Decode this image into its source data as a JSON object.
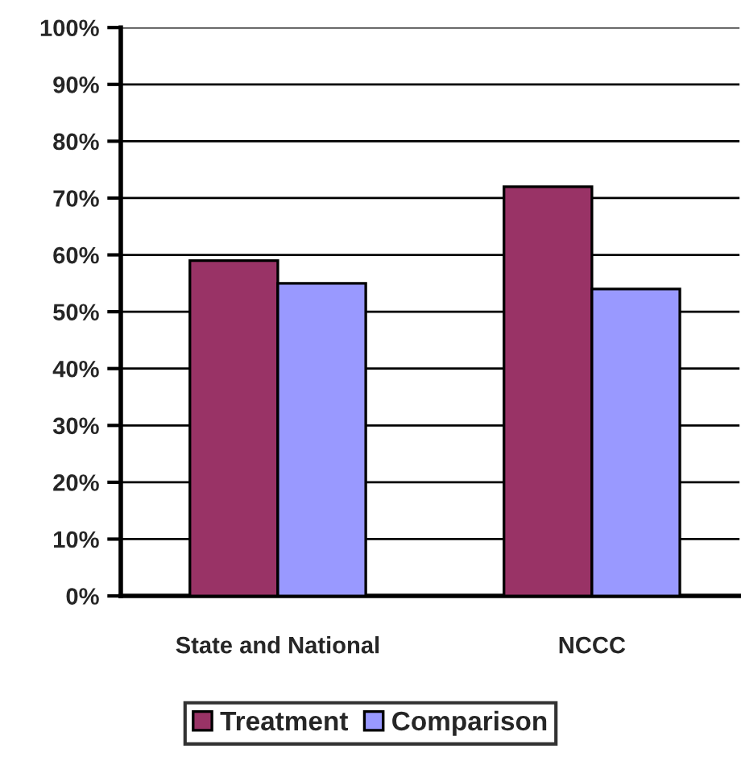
{
  "chart_data": {
    "type": "bar",
    "categories": [
      "State and National",
      "NCCC"
    ],
    "series": [
      {
        "name": "Treatment",
        "color": "#993366",
        "values": [
          59,
          72
        ]
      },
      {
        "name": "Comparison",
        "color": "#9999ff",
        "values": [
          55,
          54
        ]
      }
    ],
    "ylim": [
      0,
      100
    ],
    "yticks": [
      {
        "value": 0,
        "label": "0%"
      },
      {
        "value": 10,
        "label": "10%"
      },
      {
        "value": 20,
        "label": "20%"
      },
      {
        "value": 30,
        "label": "30%"
      },
      {
        "value": 40,
        "label": "40%"
      },
      {
        "value": 50,
        "label": "50%"
      },
      {
        "value": 60,
        "label": "60%"
      },
      {
        "value": 70,
        "label": "70%"
      },
      {
        "value": 80,
        "label": "80%"
      },
      {
        "value": 90,
        "label": "90%"
      },
      {
        "value": 100,
        "label": "100%"
      }
    ],
    "grid": "y",
    "legend": "bottom"
  }
}
